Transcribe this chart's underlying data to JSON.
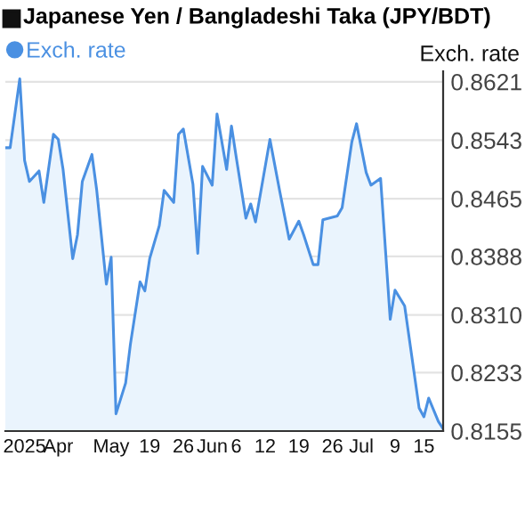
{
  "chart_data": {
    "type": "area",
    "title": "Japanese Yen / Bangladeshi Taka (JPY/BDT)",
    "ylabel": "Exch. rate",
    "x": [
      "2025-04-19",
      "2025-04-20",
      "2025-04-22",
      "2025-04-23",
      "2025-04-24",
      "2025-04-26",
      "2025-04-27",
      "2025-04-29",
      "2025-04-30",
      "2025-05-01",
      "2025-05-03",
      "2025-05-04",
      "2025-05-05",
      "2025-05-07",
      "2025-05-08",
      "2025-05-10",
      "2025-05-11",
      "2025-05-12",
      "2025-05-14",
      "2025-05-15",
      "2025-05-17",
      "2025-05-18",
      "2025-05-19",
      "2025-05-21",
      "2025-05-22",
      "2025-05-24",
      "2025-05-25",
      "2025-05-26",
      "2025-05-28",
      "2025-05-29",
      "2025-05-30",
      "2025-06-01",
      "2025-06-02",
      "2025-06-04",
      "2025-06-05",
      "2025-06-06",
      "2025-06-08",
      "2025-06-09",
      "2025-06-10",
      "2025-06-13",
      "2025-06-15",
      "2025-06-17",
      "2025-06-19",
      "2025-06-20",
      "2025-06-22",
      "2025-06-23",
      "2025-06-24",
      "2025-06-27",
      "2025-06-28",
      "2025-06-30",
      "2025-07-01",
      "2025-07-03",
      "2025-07-04",
      "2025-07-06",
      "2025-07-08",
      "2025-07-09",
      "2025-07-11",
      "2025-07-14",
      "2025-07-15",
      "2025-07-16",
      "2025-07-18",
      "2025-07-19"
    ],
    "series": [
      {
        "name": "Exch. rate",
        "color": "#4a90e2",
        "values": [
          0.8533,
          0.8533,
          0.8625,
          0.8516,
          0.8488,
          0.8502,
          0.846,
          0.8551,
          0.8544,
          0.8504,
          0.8385,
          0.8417,
          0.8488,
          0.8524,
          0.8476,
          0.8351,
          0.8387,
          0.8178,
          0.8219,
          0.8271,
          0.8354,
          0.8342,
          0.8385,
          0.8429,
          0.8476,
          0.846,
          0.8551,
          0.8558,
          0.8484,
          0.8392,
          0.8508,
          0.8483,
          0.8578,
          0.8504,
          0.8562,
          0.852,
          0.8439,
          0.8458,
          0.8434,
          0.8544,
          0.8476,
          0.8411,
          0.8435,
          0.8417,
          0.8377,
          0.8377,
          0.8437,
          0.8442,
          0.8453,
          0.854,
          0.8565,
          0.85,
          0.8483,
          0.8492,
          0.8304,
          0.8343,
          0.8322,
          0.8186,
          0.8174,
          0.8199,
          0.8168,
          0.8158
        ]
      }
    ],
    "xlim": [
      "2025-04-19",
      "2025-07-19"
    ],
    "xticks": [
      {
        "value": "2025-04-23",
        "label": "2025"
      },
      {
        "value": "2025-04-30",
        "label": "Apr"
      },
      {
        "value": "2025-05-11",
        "label": "May"
      },
      {
        "value": "2025-05-19",
        "label": "19"
      },
      {
        "value": "2025-05-26",
        "label": "26"
      },
      {
        "value": "2025-06-01",
        "label": "Jun"
      },
      {
        "value": "2025-06-06",
        "label": "6"
      },
      {
        "value": "2025-06-12",
        "label": "12"
      },
      {
        "value": "2025-06-19",
        "label": "19"
      },
      {
        "value": "2025-06-26",
        "label": "26"
      },
      {
        "value": "2025-07-02",
        "label": "Jul"
      },
      {
        "value": "2025-07-09",
        "label": "9"
      },
      {
        "value": "2025-07-15",
        "label": "15"
      }
    ],
    "ylim": [
      0.8155,
      0.8635
    ],
    "yticks": [
      {
        "value": 0.8155,
        "label": "0.8155"
      },
      {
        "value": 0.8233,
        "label": "0.8233"
      },
      {
        "value": 0.831,
        "label": "0.8310"
      },
      {
        "value": 0.8388,
        "label": "0.8388"
      },
      {
        "value": 0.8465,
        "label": "0.8465"
      },
      {
        "value": 0.8543,
        "label": "0.8543"
      },
      {
        "value": 0.8621,
        "label": "0.8621"
      }
    ],
    "grid": "y",
    "legend": "top left"
  }
}
